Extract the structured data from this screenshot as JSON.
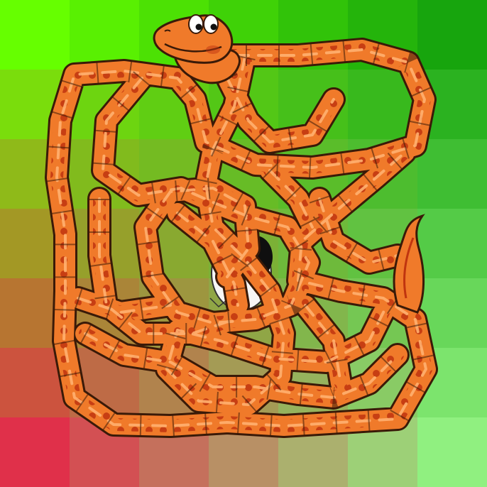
{
  "game": {
    "type": "snake-tangle-puzzle",
    "grid": {
      "cols": 7,
      "rows": 7
    },
    "colors": {
      "snake_body": "#f07a2a",
      "snake_outline": "#3a1a08",
      "snake_stripe": "#ffb070",
      "snake_spot": "#c0340f",
      "tile_top_right": "#17a50d",
      "tile_top_left": "#66ff00",
      "tile_bottom_left": "#e0304a",
      "tile_bottom_right": "#90f080"
    },
    "egg": {
      "state": "cracked"
    },
    "snake": {
      "head": "smiling",
      "tail": "curled"
    }
  }
}
